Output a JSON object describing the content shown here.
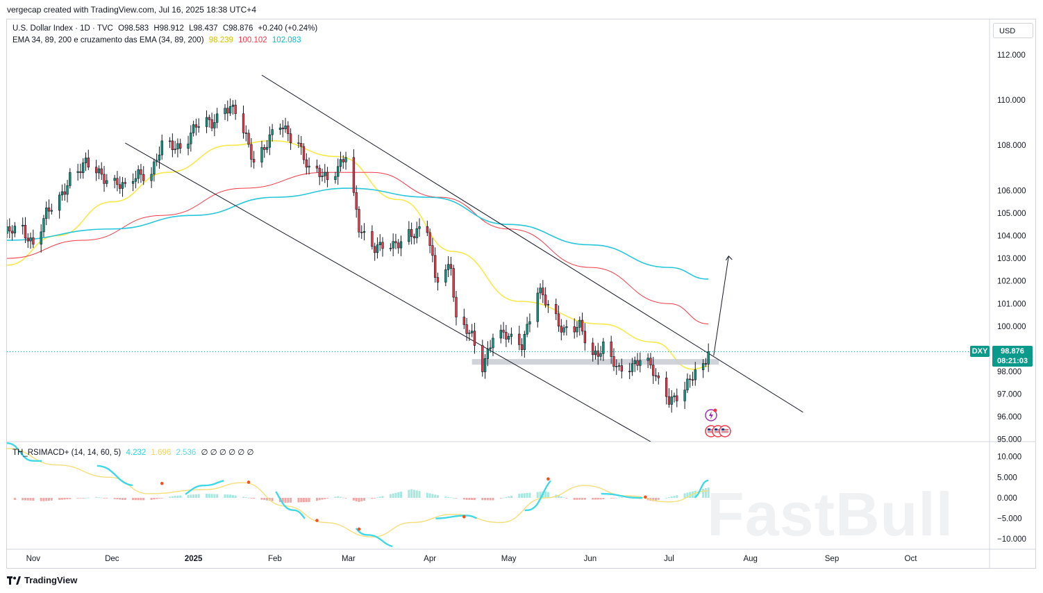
{
  "header": {
    "created_line": "vergecap created with TradingView.com, Jul 16, 2025 18:38 UTC+4",
    "currency_button": "USD"
  },
  "legend": {
    "symbol_line": "U.S. Dollar Index · 1D · TVC",
    "ohlc": {
      "open": "O98.583",
      "high": "H98.912",
      "low": "L98.437",
      "close": "C98.876",
      "change": "+0.240 (+0.24%)"
    },
    "ema_label": "EMA 34, 89, 200 e cruzamento das EMA (34, 89, 200)",
    "ema_values": [
      {
        "value": "98.239",
        "color": "#e5d400"
      },
      {
        "value": "100.102",
        "color": "#f23645"
      },
      {
        "value": "102.083",
        "color": "#00bcd4"
      }
    ],
    "osc_label": "TH_RSIMACD+ (14, 14, 60, 5)",
    "osc_values": [
      {
        "value": "4.232",
        "color": "#3fd8e6"
      },
      {
        "value": "1.696",
        "color": "#f5de7a"
      },
      {
        "value": "2.536",
        "color": "#7fe0e8"
      }
    ],
    "osc_empty": "∅ ∅ ∅ ∅ ∅ ∅"
  },
  "price_badge": {
    "symbol": "DXY",
    "price": "98.876",
    "countdown": "08:21:03",
    "color": "#0a9a8c"
  },
  "footer": {
    "brand": "TradingView"
  },
  "watermark": "FastBull",
  "colors": {
    "up": "#089981",
    "down": "#f23645",
    "ema34": "#f7e94a",
    "ema89": "#f23645",
    "ema200": "#26c6da",
    "line": "#131722"
  },
  "chart_data": [
    {
      "type": "line",
      "title": "U.S. Dollar Index · 1D · TVC",
      "y_ticks": [
        "95.000",
        "96.000",
        "97.000",
        "98.000",
        "100.000",
        "101.000",
        "102.000",
        "103.000",
        "104.000",
        "105.000",
        "106.000",
        "108.000",
        "110.000",
        "112.000"
      ],
      "y_tick_values": [
        95,
        96,
        97,
        98,
        100,
        101,
        102,
        103,
        104,
        105,
        106,
        108,
        110,
        112
      ],
      "x_ticks": [
        "Nov",
        "Dec",
        "2025",
        "Feb",
        "Mar",
        "Apr",
        "May",
        "Jun",
        "Jul",
        "Aug",
        "Sep",
        "Oct"
      ],
      "x_tick_dates": [
        "2024-11-01",
        "2024-12-01",
        "2025-01-01",
        "2025-02-01",
        "2025-03-01",
        "2025-04-01",
        "2025-05-01",
        "2025-06-01",
        "2025-07-01",
        "2025-08-01",
        "2025-09-01",
        "2025-10-01"
      ],
      "ylim": [
        94.9,
        113.5
      ],
      "xlim": [
        "2024-10-22",
        "2025-10-31"
      ],
      "last_price": 98.876,
      "close_series": {
        "name": "DXY",
        "points": [
          [
            "2024-10-22",
            104.1
          ],
          [
            "2024-10-28",
            104.3
          ],
          [
            "2024-11-01",
            103.7
          ],
          [
            "2024-11-06",
            104.9
          ],
          [
            "2024-11-11",
            105.6
          ],
          [
            "2024-11-15",
            106.7
          ],
          [
            "2024-11-21",
            107.1
          ],
          [
            "2024-11-26",
            106.8
          ],
          [
            "2024-12-02",
            106.4
          ],
          [
            "2024-12-06",
            106.0
          ],
          [
            "2024-12-11",
            106.8
          ],
          [
            "2024-12-16",
            106.8
          ],
          [
            "2024-12-20",
            107.9
          ],
          [
            "2024-12-27",
            108.0
          ],
          [
            "2025-01-02",
            108.8
          ],
          [
            "2025-01-08",
            109.0
          ],
          [
            "2025-01-13",
            109.8
          ],
          [
            "2025-01-17",
            109.4
          ],
          [
            "2025-01-24",
            107.4
          ],
          [
            "2025-01-31",
            108.4
          ],
          [
            "2025-02-03",
            108.8
          ],
          [
            "2025-02-10",
            108.2
          ],
          [
            "2025-02-14",
            106.8
          ],
          [
            "2025-02-21",
            106.6
          ],
          [
            "2025-02-28",
            107.5
          ],
          [
            "2025-03-05",
            104.3
          ],
          [
            "2025-03-11",
            103.6
          ],
          [
            "2025-03-18",
            103.4
          ],
          [
            "2025-03-24",
            104.2
          ],
          [
            "2025-03-31",
            104.2
          ],
          [
            "2025-04-03",
            102.1
          ],
          [
            "2025-04-09",
            102.8
          ],
          [
            "2025-04-11",
            100.2
          ],
          [
            "2025-04-17",
            99.5
          ],
          [
            "2025-04-21",
            98.3
          ],
          [
            "2025-04-25",
            99.6
          ],
          [
            "2025-04-30",
            99.5
          ],
          [
            "2025-05-06",
            99.3
          ],
          [
            "2025-05-12",
            101.5
          ],
          [
            "2025-05-16",
            100.9
          ],
          [
            "2025-05-22",
            99.9
          ],
          [
            "2025-05-28",
            99.9
          ],
          [
            "2025-06-02",
            98.7
          ],
          [
            "2025-06-06",
            99.2
          ],
          [
            "2025-06-12",
            97.9
          ],
          [
            "2025-06-16",
            98.2
          ],
          [
            "2025-06-20",
            98.7
          ],
          [
            "2025-06-23",
            98.4
          ],
          [
            "2025-06-27",
            97.4
          ],
          [
            "2025-07-01",
            96.8
          ],
          [
            "2025-07-04",
            97.0
          ],
          [
            "2025-07-09",
            97.5
          ],
          [
            "2025-07-11",
            97.9
          ],
          [
            "2025-07-14",
            98.1
          ],
          [
            "2025-07-16",
            98.876
          ]
        ]
      },
      "ema_series": [
        {
          "name": "EMA 34",
          "color": "#f7e94a",
          "points": [
            [
              "2024-10-22",
              102.7
            ],
            [
              "2024-11-10",
              104.0
            ],
            [
              "2024-12-01",
              105.5
            ],
            [
              "2024-12-22",
              106.8
            ],
            [
              "2025-01-15",
              108.0
            ],
            [
              "2025-01-31",
              108.2
            ],
            [
              "2025-02-25",
              107.5
            ],
            [
              "2025-03-20",
              105.6
            ],
            [
              "2025-04-10",
              103.3
            ],
            [
              "2025-05-05",
              101.1
            ],
            [
              "2025-06-05",
              100.1
            ],
            [
              "2025-06-25",
              99.3
            ],
            [
              "2025-07-10",
              98.1
            ],
            [
              "2025-07-16",
              98.239
            ]
          ]
        },
        {
          "name": "EMA 89",
          "color": "#f23645",
          "points": [
            [
              "2024-10-22",
              103.0
            ],
            [
              "2024-11-20",
              103.8
            ],
            [
              "2024-12-20",
              104.9
            ],
            [
              "2025-01-20",
              106.1
            ],
            [
              "2025-02-20",
              106.8
            ],
            [
              "2025-03-10",
              106.8
            ],
            [
              "2025-04-05",
              105.7
            ],
            [
              "2025-05-01",
              104.3
            ],
            [
              "2025-06-01",
              102.6
            ],
            [
              "2025-07-01",
              101.0
            ],
            [
              "2025-07-16",
              100.102
            ]
          ]
        },
        {
          "name": "EMA 200",
          "color": "#26c6da",
          "points": [
            [
              "2024-10-22",
              103.8
            ],
            [
              "2024-12-01",
              104.3
            ],
            [
              "2025-01-01",
              104.9
            ],
            [
              "2025-02-01",
              105.7
            ],
            [
              "2025-03-01",
              106.1
            ],
            [
              "2025-04-01",
              105.7
            ],
            [
              "2025-05-01",
              104.5
            ],
            [
              "2025-06-01",
              103.6
            ],
            [
              "2025-07-01",
              102.6
            ],
            [
              "2025-07-16",
              102.083
            ]
          ]
        }
      ],
      "channel_upper": [
        [
          "2025-01-27",
          111.1
        ],
        [
          "2025-08-21",
          96.2
        ]
      ],
      "channel_lower": [
        [
          "2024-12-06",
          108.1
        ],
        [
          "2025-06-24",
          94.9
        ]
      ],
      "support_zone": [
        98.3,
        98.55
      ],
      "support_range": [
        "2025-04-17",
        "2025-07-20"
      ],
      "projection_arrow": [
        [
          "2025-07-18",
          98.7
        ],
        [
          "2025-07-20",
          103.1
        ]
      ],
      "annotations": [
        {
          "value": 98.876,
          "date": "2025-07-16",
          "kind": "last-price-dotted-line"
        }
      ]
    },
    {
      "type": "line",
      "title": "TH_RSIMACD+ (14, 14, 60, 5)",
      "y_ticks": [
        "10.000",
        "5.000",
        "0.000",
        "−5.000",
        "−10.000"
      ],
      "y_tick_values": [
        10,
        5,
        0,
        -5,
        -10
      ],
      "ylim": [
        -12.5,
        13.5
      ],
      "series": [
        {
          "name": "4.232",
          "color": "#3fd8e6",
          "points": [
            [
              "2024-10-22",
              13.3
            ],
            [
              "2024-11-01",
              9.0
            ],
            [
              "2024-11-10",
              8.8
            ],
            [
              "2024-11-25",
              7.8
            ],
            [
              "2024-12-10",
              3.0
            ],
            [
              "2024-12-25",
              0.2
            ],
            [
              "2025-01-05",
              3.0
            ],
            [
              "2025-01-15",
              4.3
            ],
            [
              "2025-01-28",
              3.5
            ],
            [
              "2025-02-08",
              -3.0
            ],
            [
              "2025-02-16",
              -6.5
            ],
            [
              "2025-02-28",
              -6.0
            ],
            [
              "2025-03-08",
              -9.0
            ],
            [
              "2025-03-20",
              -12.0
            ],
            [
              "2025-04-03",
              -5.0
            ],
            [
              "2025-04-15",
              -4.3
            ],
            [
              "2025-04-25",
              -7.0
            ],
            [
              "2025-05-08",
              -3.0
            ],
            [
              "2025-05-20",
              5.0
            ],
            [
              "2025-06-05",
              1.0
            ],
            [
              "2025-06-20",
              0.0
            ],
            [
              "2025-07-01",
              -2.0
            ],
            [
              "2025-07-10",
              0.0
            ],
            [
              "2025-07-16",
              4.232
            ]
          ]
        },
        {
          "name": "1.696",
          "color": "#f5de7a",
          "points": [
            [
              "2024-10-22",
              12.0
            ],
            [
              "2024-11-10",
              8.0
            ],
            [
              "2024-11-30",
              5.0
            ],
            [
              "2024-12-15",
              1.0
            ],
            [
              "2025-01-05",
              2.0
            ],
            [
              "2025-01-20",
              3.7
            ],
            [
              "2025-02-05",
              -2.0
            ],
            [
              "2025-02-20",
              -6.0
            ],
            [
              "2025-03-10",
              -9.5
            ],
            [
              "2025-03-25",
              -6.0
            ],
            [
              "2025-04-10",
              -4.0
            ],
            [
              "2025-04-28",
              -6.0
            ],
            [
              "2025-05-15",
              0.0
            ],
            [
              "2025-05-30",
              3.0
            ],
            [
              "2025-06-15",
              0.5
            ],
            [
              "2025-07-01",
              -1.0
            ],
            [
              "2025-07-16",
              1.696
            ]
          ]
        }
      ],
      "histogram": [
        [
          "2024-10-25",
          -0.5
        ],
        [
          "2024-11-05",
          -0.8
        ],
        [
          "2024-11-15",
          -0.3
        ],
        [
          "2024-11-25",
          0.2
        ],
        [
          "2024-12-05",
          -0.5
        ],
        [
          "2024-12-15",
          -0.6
        ],
        [
          "2024-12-25",
          0.5
        ],
        [
          "2025-01-05",
          1.0
        ],
        [
          "2025-01-15",
          0.8
        ],
        [
          "2025-01-25",
          -0.3
        ],
        [
          "2025-02-05",
          -1.2
        ],
        [
          "2025-02-15",
          -1.0
        ],
        [
          "2025-02-25",
          0.4
        ],
        [
          "2025-03-05",
          -1.0
        ],
        [
          "2025-03-15",
          0.6
        ],
        [
          "2025-03-25",
          2.1
        ],
        [
          "2025-04-05",
          0.5
        ],
        [
          "2025-04-15",
          -0.5
        ],
        [
          "2025-04-25",
          -0.6
        ],
        [
          "2025-05-05",
          1.0
        ],
        [
          "2025-05-15",
          1.6
        ],
        [
          "2025-05-25",
          -0.5
        ],
        [
          "2025-06-05",
          -0.4
        ],
        [
          "2025-06-15",
          0.3
        ],
        [
          "2025-06-25",
          -0.8
        ],
        [
          "2025-07-05",
          0.8
        ],
        [
          "2025-07-16",
          2.5
        ]
      ]
    }
  ]
}
